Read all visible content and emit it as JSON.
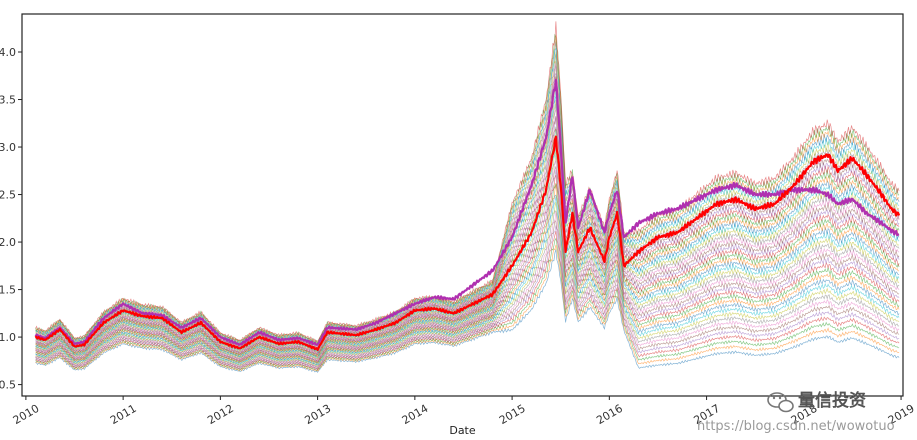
{
  "chart_data": {
    "type": "line",
    "title": "",
    "xlabel": "Date",
    "ylabel": "",
    "xlim": [
      2009.96,
      2019.02
    ],
    "ylim": [
      0.38,
      4.4
    ],
    "x_ticks": [
      2010,
      2011,
      2012,
      2013,
      2014,
      2015,
      2016,
      2017,
      2018,
      2019
    ],
    "x_tick_labels": [
      "2010",
      "2011",
      "2012",
      "2013",
      "2014",
      "2015",
      "2016",
      "2017",
      "2018",
      "2019"
    ],
    "y_ticks": [
      0.5,
      1.0,
      1.5,
      2.0,
      2.5,
      3.0,
      3.5,
      4.0
    ],
    "y_tick_labels": [
      "0.5",
      "1.0",
      "1.5",
      "2.0",
      "2.5",
      "3.0",
      "3.5",
      "4.0"
    ],
    "grid": false,
    "legend": "none",
    "background_series_count": 44,
    "background_palette": [
      "#1f77b4",
      "#ff7f0e",
      "#2ca02c",
      "#d62728",
      "#9467bd",
      "#8c564b",
      "#e377c2",
      "#7f7f7f",
      "#bcbd22",
      "#17becf"
    ],
    "series": [
      {
        "color": "#ff0000",
        "highlight": true,
        "points": [
          [
            2010.1,
            1.0
          ],
          [
            2010.2,
            0.97
          ],
          [
            2010.35,
            1.08
          ],
          [
            2010.5,
            0.9
          ],
          [
            2010.6,
            0.92
          ],
          [
            2010.8,
            1.15
          ],
          [
            2011.0,
            1.28
          ],
          [
            2011.2,
            1.22
          ],
          [
            2011.4,
            1.2
          ],
          [
            2011.6,
            1.05
          ],
          [
            2011.8,
            1.15
          ],
          [
            2012.0,
            0.95
          ],
          [
            2012.2,
            0.88
          ],
          [
            2012.4,
            1.0
          ],
          [
            2012.6,
            0.93
          ],
          [
            2012.8,
            0.95
          ],
          [
            2013.0,
            0.87
          ],
          [
            2013.1,
            1.05
          ],
          [
            2013.4,
            1.02
          ],
          [
            2013.6,
            1.08
          ],
          [
            2013.8,
            1.15
          ],
          [
            2014.0,
            1.28
          ],
          [
            2014.2,
            1.3
          ],
          [
            2014.4,
            1.25
          ],
          [
            2014.6,
            1.35
          ],
          [
            2014.8,
            1.45
          ],
          [
            2015.0,
            1.75
          ],
          [
            2015.2,
            2.1
          ],
          [
            2015.35,
            2.55
          ],
          [
            2015.45,
            3.1
          ],
          [
            2015.5,
            2.6
          ],
          [
            2015.55,
            1.9
          ],
          [
            2015.62,
            2.3
          ],
          [
            2015.68,
            1.9
          ],
          [
            2015.8,
            2.15
          ],
          [
            2015.95,
            1.8
          ],
          [
            2016.0,
            2.05
          ],
          [
            2016.08,
            2.3
          ],
          [
            2016.15,
            1.75
          ],
          [
            2016.3,
            1.9
          ],
          [
            2016.5,
            2.05
          ],
          [
            2016.7,
            2.1
          ],
          [
            2016.9,
            2.25
          ],
          [
            2017.1,
            2.4
          ],
          [
            2017.3,
            2.45
          ],
          [
            2017.5,
            2.35
          ],
          [
            2017.7,
            2.4
          ],
          [
            2017.9,
            2.6
          ],
          [
            2018.1,
            2.85
          ],
          [
            2018.25,
            2.92
          ],
          [
            2018.35,
            2.75
          ],
          [
            2018.5,
            2.88
          ],
          [
            2018.65,
            2.7
          ],
          [
            2018.8,
            2.5
          ],
          [
            2018.9,
            2.35
          ],
          [
            2018.98,
            2.28
          ]
        ]
      },
      {
        "color": "#b030b0",
        "highlight": true,
        "points": [
          [
            2010.1,
            1.02
          ],
          [
            2010.2,
            0.99
          ],
          [
            2010.35,
            1.1
          ],
          [
            2010.5,
            0.93
          ],
          [
            2010.6,
            0.95
          ],
          [
            2010.8,
            1.2
          ],
          [
            2011.0,
            1.35
          ],
          [
            2011.2,
            1.25
          ],
          [
            2011.4,
            1.23
          ],
          [
            2011.6,
            1.1
          ],
          [
            2011.8,
            1.2
          ],
          [
            2012.0,
            1.0
          ],
          [
            2012.2,
            0.92
          ],
          [
            2012.4,
            1.05
          ],
          [
            2012.6,
            0.97
          ],
          [
            2012.8,
            0.99
          ],
          [
            2013.0,
            0.92
          ],
          [
            2013.1,
            1.1
          ],
          [
            2013.4,
            1.08
          ],
          [
            2013.6,
            1.15
          ],
          [
            2013.8,
            1.25
          ],
          [
            2014.0,
            1.35
          ],
          [
            2014.2,
            1.42
          ],
          [
            2014.4,
            1.4
          ],
          [
            2014.6,
            1.55
          ],
          [
            2014.8,
            1.7
          ],
          [
            2015.0,
            2.05
          ],
          [
            2015.2,
            2.6
          ],
          [
            2015.35,
            3.1
          ],
          [
            2015.45,
            3.7
          ],
          [
            2015.5,
            3.0
          ],
          [
            2015.55,
            2.2
          ],
          [
            2015.62,
            2.7
          ],
          [
            2015.68,
            2.15
          ],
          [
            2015.8,
            2.55
          ],
          [
            2015.95,
            2.1
          ],
          [
            2016.0,
            2.3
          ],
          [
            2016.08,
            2.55
          ],
          [
            2016.15,
            2.05
          ],
          [
            2016.3,
            2.2
          ],
          [
            2016.5,
            2.3
          ],
          [
            2016.7,
            2.35
          ],
          [
            2016.9,
            2.45
          ],
          [
            2017.1,
            2.55
          ],
          [
            2017.3,
            2.6
          ],
          [
            2017.5,
            2.5
          ],
          [
            2017.7,
            2.5
          ],
          [
            2017.9,
            2.55
          ],
          [
            2018.1,
            2.55
          ],
          [
            2018.25,
            2.5
          ],
          [
            2018.35,
            2.4
          ],
          [
            2018.5,
            2.45
          ],
          [
            2018.65,
            2.3
          ],
          [
            2018.8,
            2.2
          ],
          [
            2018.9,
            2.12
          ],
          [
            2018.98,
            2.08
          ]
        ]
      }
    ]
  },
  "watermark": {
    "brand": "量信投资",
    "url": "https://blog.csdn.net/wowotuo"
  }
}
